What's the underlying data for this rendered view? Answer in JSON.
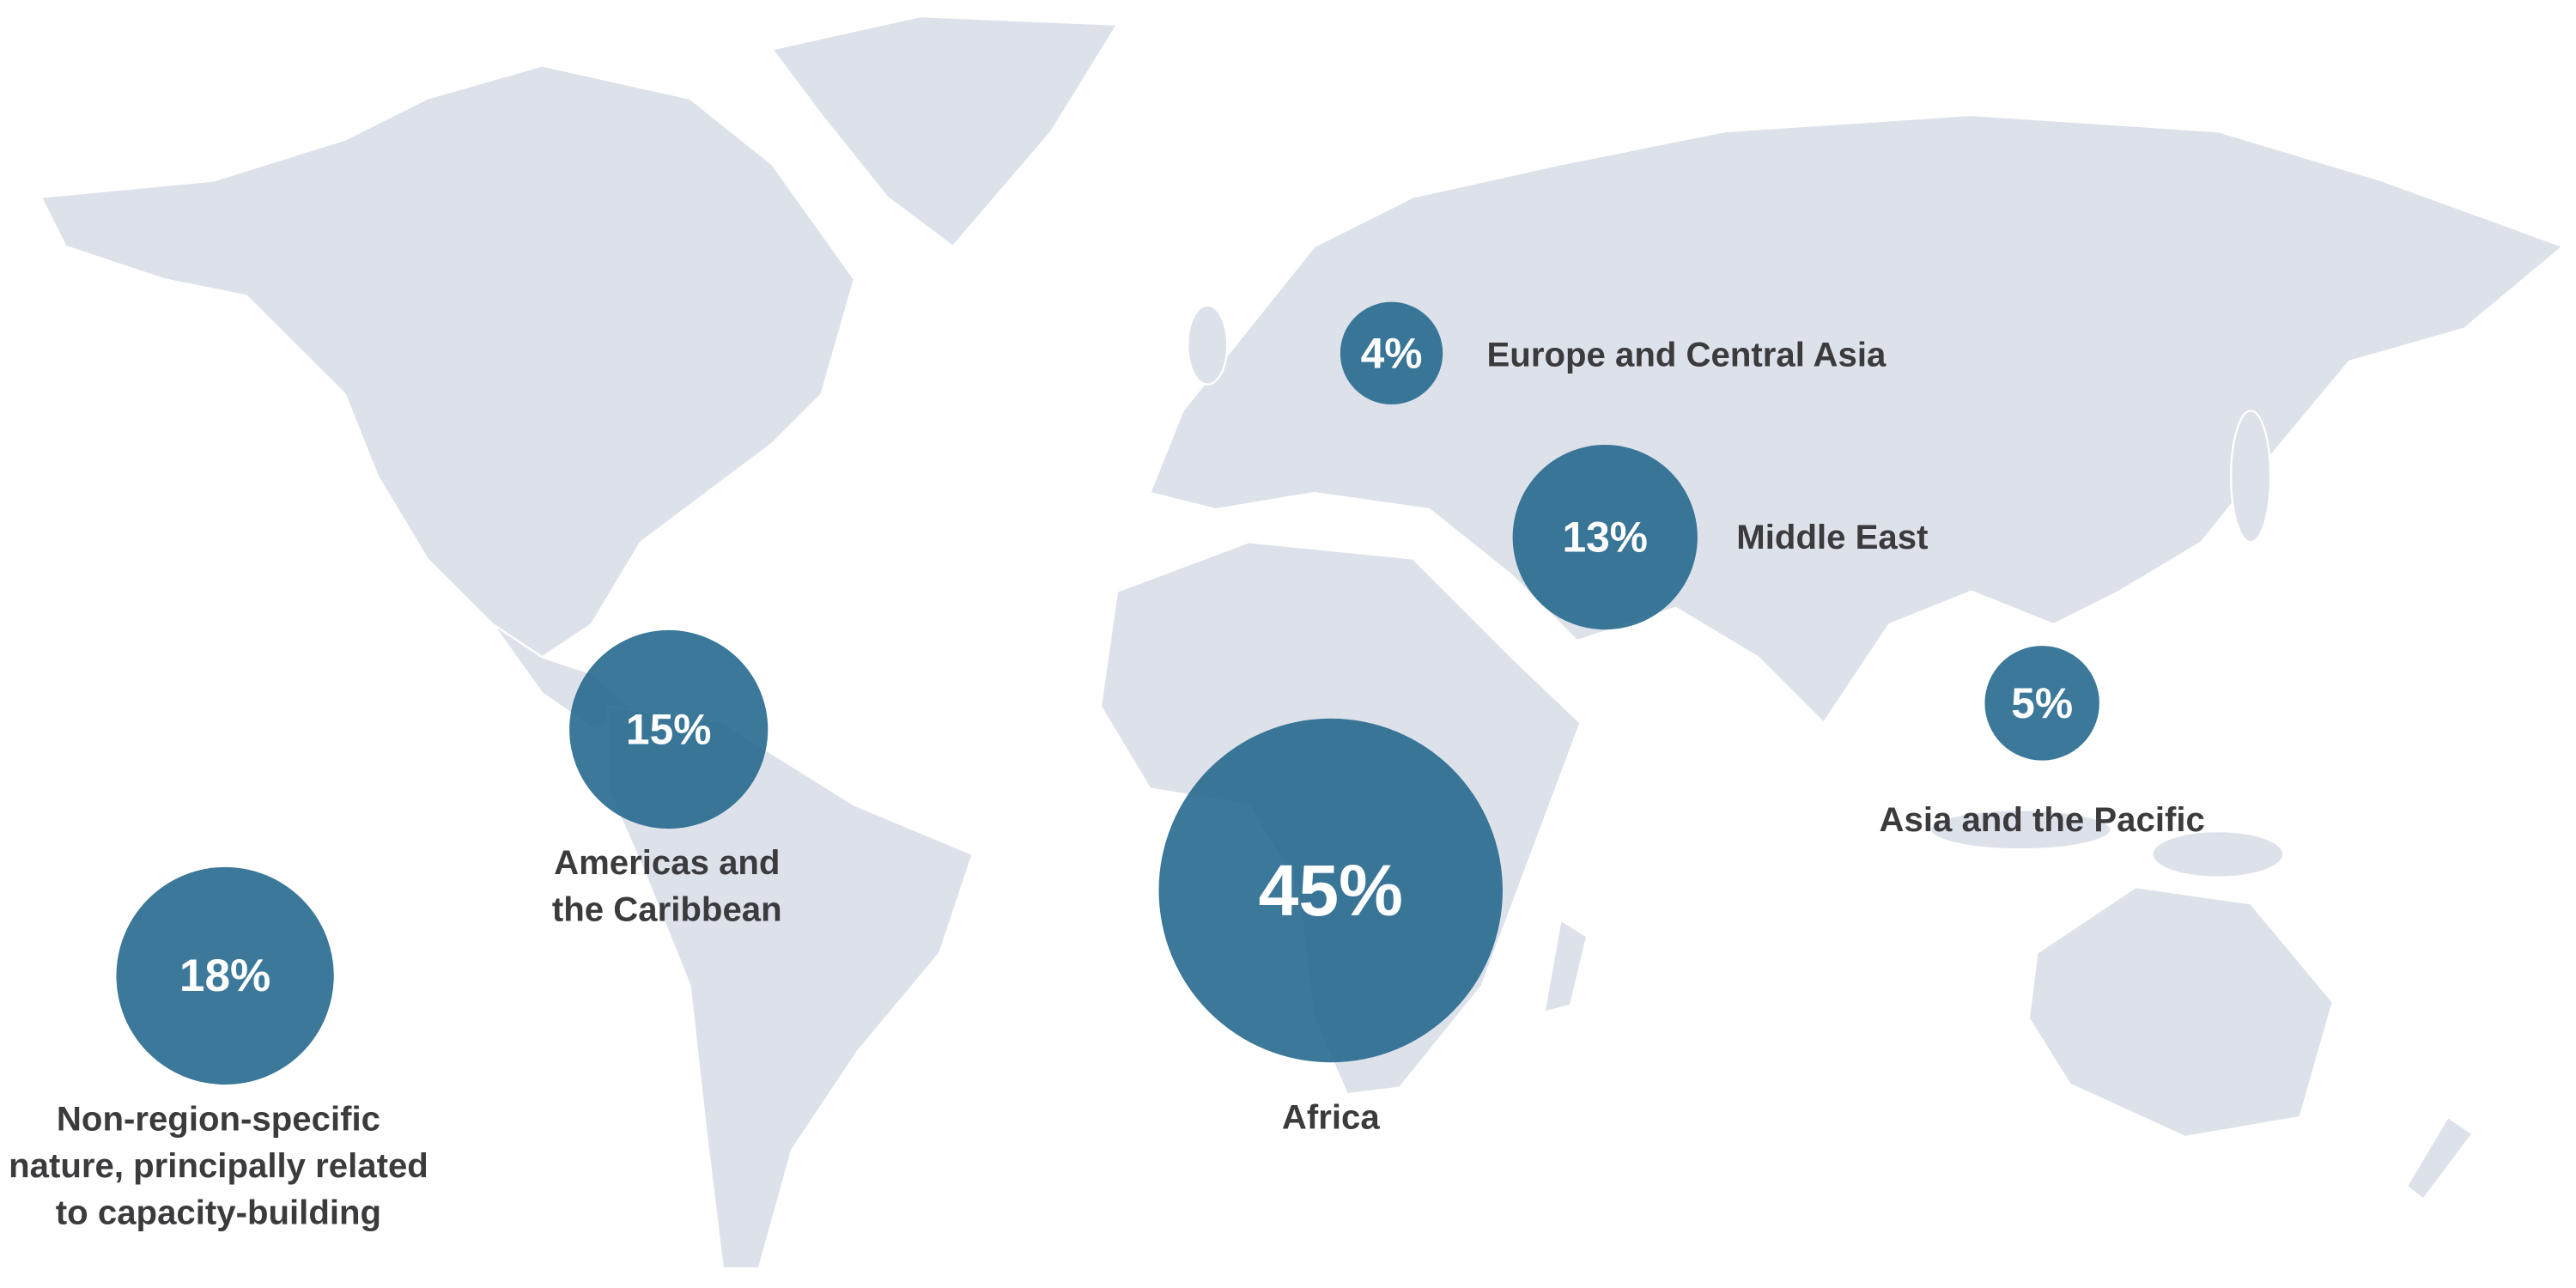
{
  "regions": [
    {
      "value": 4,
      "value_label": "4%",
      "label_lines": [
        "Europe and Central Asia"
      ]
    },
    {
      "value": 13,
      "value_label": "13%",
      "label_lines": [
        "Middle East"
      ]
    },
    {
      "value": 5,
      "value_label": "5%",
      "label_lines": [
        "Asia and the Pacific"
      ]
    },
    {
      "value": 15,
      "value_label": "15%",
      "label_lines": [
        "Americas and",
        "the Caribbean"
      ]
    },
    {
      "value": 45,
      "value_label": "45%",
      "label_lines": [
        "Africa"
      ]
    },
    {
      "value": 18,
      "value_label": "18%",
      "label_lines": [
        "Non-region-specific",
        "nature, principally related",
        "to capacity-building"
      ]
    }
  ]
}
